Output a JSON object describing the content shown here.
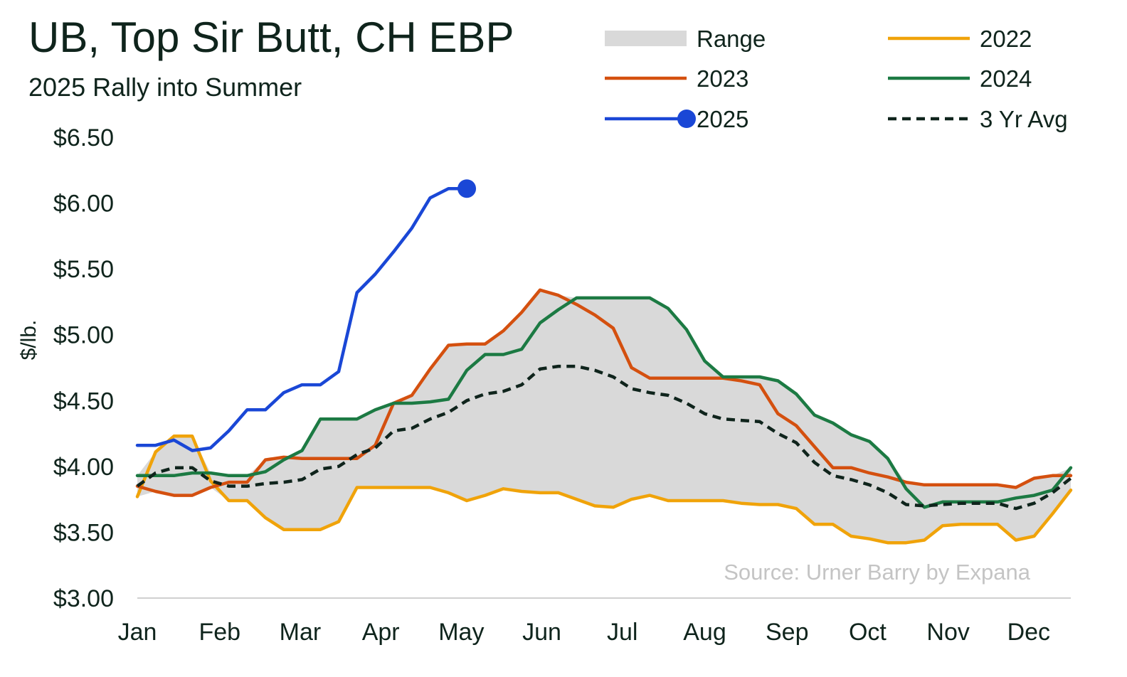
{
  "header": {
    "title": "UB, Top Sir Butt, CH EBP",
    "subtitle": "2025 Rally into Summer"
  },
  "source": "Source: Urner Barry by Expana",
  "chart_data": {
    "type": "line",
    "title": "UB, Top Sir Butt, CH EBP",
    "subtitle": "2025 Rally into Summer",
    "ylabel": "$/lb.",
    "xlabel": "",
    "ylim": [
      3.0,
      6.5
    ],
    "y_ticks": [
      3.0,
      3.5,
      4.0,
      4.5,
      5.0,
      5.5,
      6.0,
      6.5
    ],
    "y_tick_labels": [
      "$3.00",
      "$3.50",
      "$4.00",
      "$4.50",
      "$5.00",
      "$5.50",
      "$6.00",
      "$6.50"
    ],
    "x_unit": "week of year",
    "xlim": [
      1,
      52
    ],
    "months": [
      "Jan",
      "Feb",
      "Mar",
      "Apr",
      "May",
      "Jun",
      "Jul",
      "Aug",
      "Sep",
      "Oct",
      "Nov",
      "Dec"
    ],
    "month_start_weeks": [
      1,
      5.5,
      9.9,
      14.3,
      18.7,
      23.1,
      27.5,
      32,
      36.5,
      40.9,
      45.3,
      49.7
    ],
    "legend_position": "top-right",
    "grid": false,
    "range": {
      "name": "Range",
      "color": "#d9d9d9"
    },
    "series": [
      {
        "name": "2022",
        "color": "#f0a30a",
        "style": "solid",
        "x": [
          1,
          2,
          3,
          4,
          5,
          6,
          7,
          8,
          9,
          10,
          11,
          12,
          13,
          14,
          15,
          16,
          17,
          18,
          19,
          20,
          21,
          22,
          23,
          24,
          25,
          26,
          27,
          28,
          29,
          30,
          31,
          32,
          33,
          34,
          35,
          36,
          37,
          38,
          39,
          40,
          41,
          42,
          43,
          44,
          45,
          46,
          47,
          48,
          49,
          50,
          51,
          52
        ],
        "values": [
          3.77,
          4.11,
          4.23,
          4.23,
          3.89,
          3.74,
          3.74,
          3.61,
          3.52,
          3.52,
          3.52,
          3.58,
          3.84,
          3.84,
          3.84,
          3.84,
          3.84,
          3.8,
          3.74,
          3.78,
          3.83,
          3.81,
          3.8,
          3.8,
          3.75,
          3.7,
          3.69,
          3.75,
          3.78,
          3.74,
          3.74,
          3.74,
          3.74,
          3.72,
          3.71,
          3.71,
          3.68,
          3.56,
          3.56,
          3.47,
          3.45,
          3.42,
          3.42,
          3.44,
          3.55,
          3.56,
          3.56,
          3.56,
          3.44,
          3.47,
          3.64,
          3.82
        ]
      },
      {
        "name": "2023",
        "color": "#d4500f",
        "style": "solid",
        "x": [
          1,
          2,
          3,
          4,
          5,
          6,
          7,
          8,
          9,
          10,
          11,
          12,
          13,
          14,
          15,
          16,
          17,
          18,
          19,
          20,
          21,
          22,
          23,
          24,
          25,
          26,
          27,
          28,
          29,
          30,
          31,
          32,
          33,
          34,
          35,
          36,
          37,
          38,
          39,
          40,
          41,
          42,
          43,
          44,
          45,
          46,
          47,
          48,
          49,
          50,
          51,
          52
        ],
        "values": [
          3.85,
          3.81,
          3.78,
          3.78,
          3.84,
          3.88,
          3.88,
          4.05,
          4.07,
          4.06,
          4.06,
          4.06,
          4.06,
          4.16,
          4.48,
          4.54,
          4.74,
          4.92,
          4.93,
          4.93,
          5.03,
          5.17,
          5.34,
          5.3,
          5.23,
          5.15,
          5.05,
          4.75,
          4.67,
          4.67,
          4.67,
          4.67,
          4.67,
          4.65,
          4.62,
          4.4,
          4.31,
          4.15,
          3.99,
          3.99,
          3.95,
          3.92,
          3.88,
          3.86,
          3.86,
          3.86,
          3.86,
          3.86,
          3.84,
          3.91,
          3.93,
          3.93
        ]
      },
      {
        "name": "2024",
        "color": "#1c7a43",
        "style": "solid",
        "x": [
          1,
          2,
          3,
          4,
          5,
          6,
          7,
          8,
          9,
          10,
          11,
          12,
          13,
          14,
          15,
          16,
          17,
          18,
          19,
          20,
          21,
          22,
          23,
          24,
          25,
          26,
          27,
          28,
          29,
          30,
          31,
          32,
          33,
          34,
          35,
          36,
          37,
          38,
          39,
          40,
          41,
          42,
          43,
          44,
          45,
          46,
          47,
          48,
          49,
          50,
          51,
          52
        ],
        "values": [
          3.93,
          3.93,
          3.93,
          3.95,
          3.95,
          3.93,
          3.93,
          3.96,
          4.05,
          4.12,
          4.36,
          4.36,
          4.36,
          4.43,
          4.48,
          4.48,
          4.49,
          4.51,
          4.73,
          4.85,
          4.85,
          4.89,
          5.09,
          5.19,
          5.28,
          5.28,
          5.28,
          5.28,
          5.28,
          5.2,
          5.04,
          4.8,
          4.68,
          4.68,
          4.68,
          4.65,
          4.55,
          4.39,
          4.33,
          4.24,
          4.19,
          4.06,
          3.83,
          3.69,
          3.73,
          3.73,
          3.73,
          3.73,
          3.76,
          3.78,
          3.82,
          3.99
        ]
      },
      {
        "name": "2025",
        "color": "#1a47d6",
        "style": "solid",
        "end_marker": true,
        "x": [
          1,
          2,
          3,
          4,
          5,
          6,
          7,
          8,
          9,
          10,
          11,
          12,
          13,
          14,
          15,
          16,
          17,
          18,
          19
        ],
        "values": [
          4.16,
          4.16,
          4.2,
          4.12,
          4.14,
          4.27,
          4.43,
          4.43,
          4.56,
          4.62,
          4.62,
          4.72,
          5.32,
          5.46,
          5.63,
          5.81,
          6.04,
          6.11,
          6.11
        ]
      },
      {
        "name": "3 Yr Avg",
        "color": "#0f241c",
        "style": "dashed",
        "x": [
          1,
          2,
          3,
          4,
          5,
          6,
          7,
          8,
          9,
          10,
          11,
          12,
          13,
          14,
          15,
          16,
          17,
          18,
          19,
          20,
          21,
          22,
          23,
          24,
          25,
          26,
          27,
          28,
          29,
          30,
          31,
          32,
          33,
          34,
          35,
          36,
          37,
          38,
          39,
          40,
          41,
          42,
          43,
          44,
          45,
          46,
          47,
          48,
          49,
          50,
          51,
          52
        ],
        "values": [
          3.85,
          3.95,
          3.99,
          3.99,
          3.89,
          3.85,
          3.85,
          3.87,
          3.88,
          3.9,
          3.98,
          4.0,
          4.09,
          4.14,
          4.27,
          4.29,
          4.36,
          4.41,
          4.5,
          4.55,
          4.57,
          4.62,
          4.74,
          4.76,
          4.76,
          4.73,
          4.68,
          4.59,
          4.56,
          4.54,
          4.48,
          4.4,
          4.36,
          4.35,
          4.34,
          4.25,
          4.18,
          4.03,
          3.93,
          3.9,
          3.86,
          3.8,
          3.71,
          3.7,
          3.71,
          3.72,
          3.72,
          3.72,
          3.68,
          3.72,
          3.8,
          3.91
        ]
      }
    ]
  }
}
